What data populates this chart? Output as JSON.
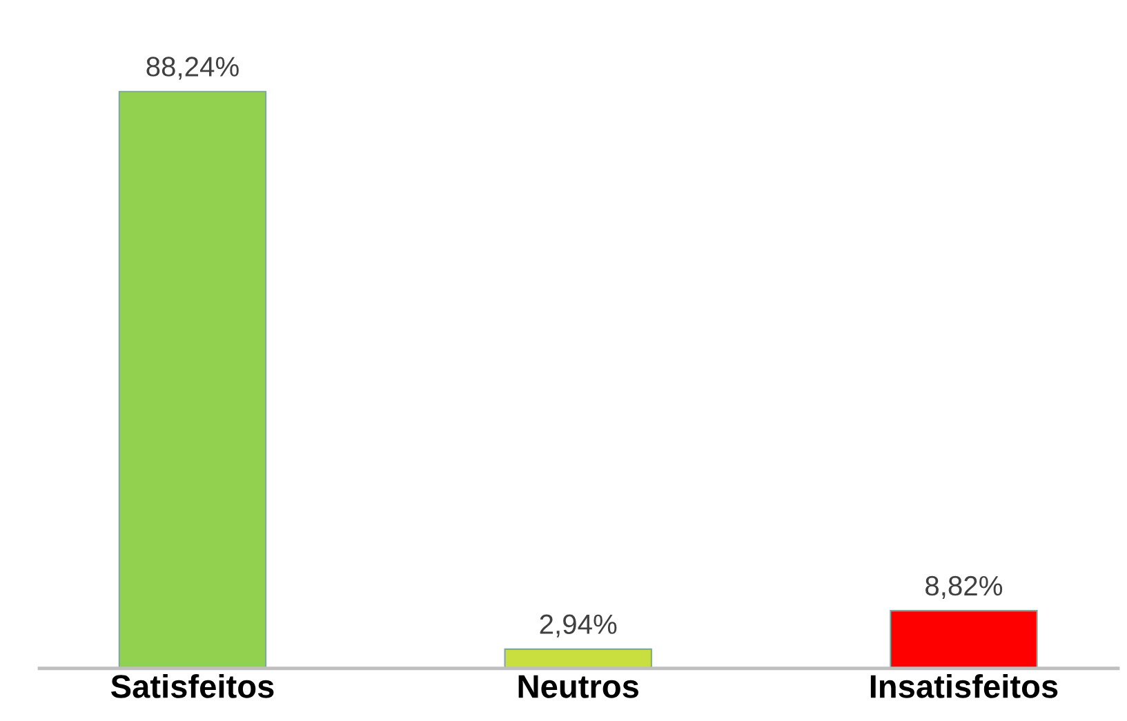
{
  "chart_data": {
    "type": "bar",
    "categories": [
      "Satisfeitos",
      "Neutros",
      "Insatisfeitos"
    ],
    "values": [
      88.24,
      2.94,
      8.82
    ],
    "colors": [
      "#92d050",
      "#c9de3f",
      "#ff0000"
    ],
    "value_labels": [
      "88,24%",
      "2,94%",
      "8,82%"
    ],
    "tick_labels": "x",
    "grid": false,
    "legend": false
  }
}
